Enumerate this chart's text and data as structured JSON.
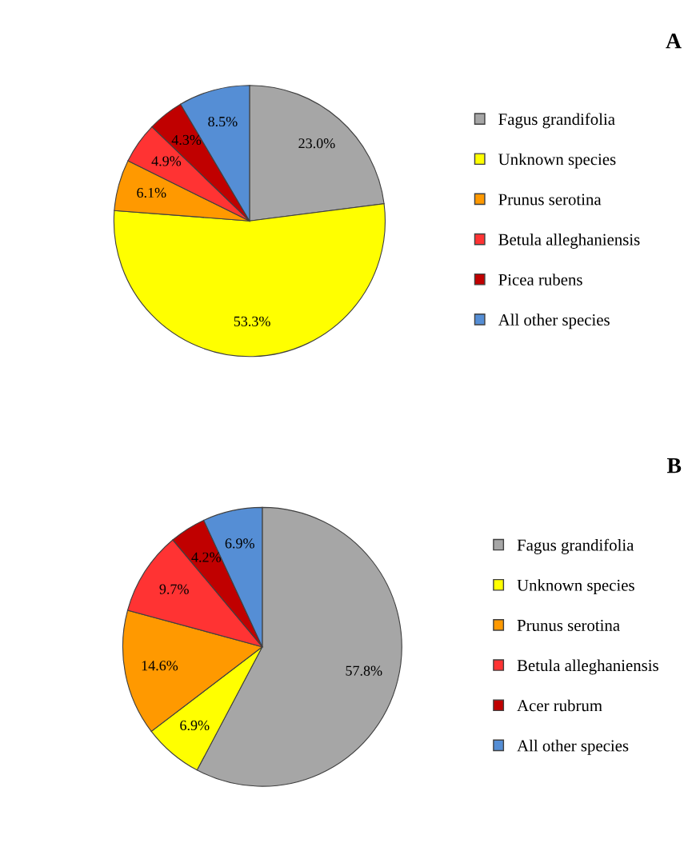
{
  "chart_data": [
    {
      "type": "pie",
      "title": "A",
      "categories": [
        "Fagus grandifolia",
        "Unknown species",
        "Prunus serotina",
        "Betula alleghaniensis",
        "Picea rubens",
        "All other species"
      ],
      "values": [
        23.0,
        53.3,
        6.1,
        4.9,
        4.3,
        8.5
      ],
      "value_labels": [
        "23.0%",
        "53.3%",
        "6.1%",
        "4.9%",
        "4.3%",
        "8.5%"
      ],
      "colors": [
        "#a6a6a6",
        "#ffff00",
        "#ff9900",
        "#ff3333",
        "#c00000",
        "#558ed5"
      ],
      "legend": "right"
    },
    {
      "type": "pie",
      "title": "B",
      "categories": [
        "Fagus grandifolia",
        "Unknown species",
        "Prunus serotina",
        "Betula alleghaniensis",
        "Acer rubrum",
        "All other species"
      ],
      "values": [
        57.8,
        6.9,
        14.6,
        9.7,
        4.2,
        6.9
      ],
      "value_labels": [
        "57.8%",
        "6.9%",
        "14.6%",
        "9.7%",
        "4.2%",
        "6.9%"
      ],
      "colors": [
        "#a6a6a6",
        "#ffff00",
        "#ff9900",
        "#ff3333",
        "#c00000",
        "#558ed5"
      ],
      "legend": "right"
    }
  ]
}
